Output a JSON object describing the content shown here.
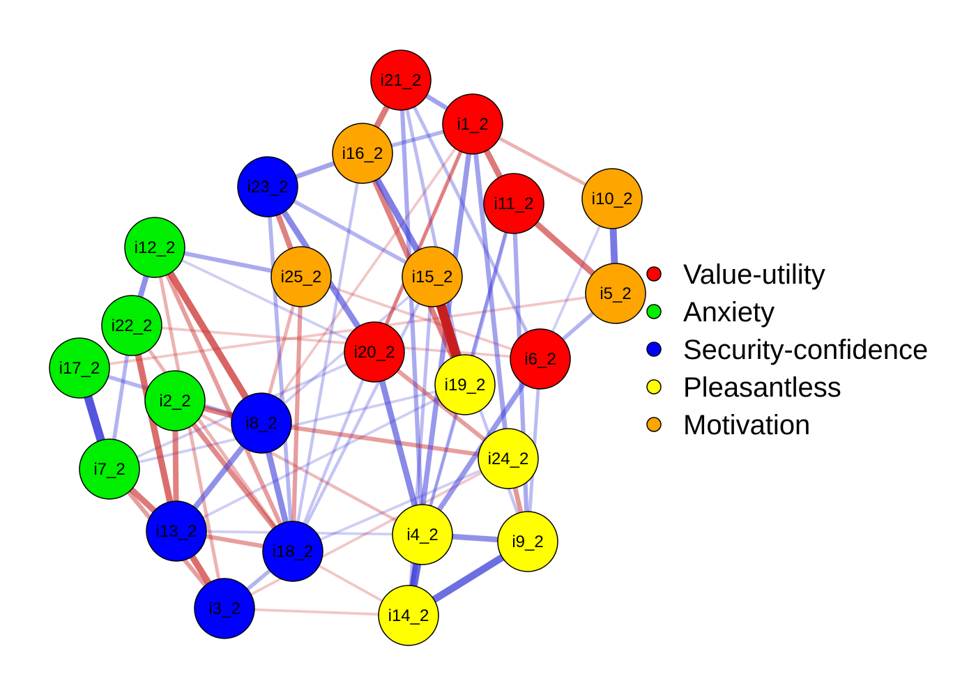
{
  "groups": [
    {
      "id": "value-utility",
      "label": "Value-utility",
      "color": "#ff0000"
    },
    {
      "id": "anxiety",
      "label": "Anxiety",
      "color": "#00ee00"
    },
    {
      "id": "security-confidence",
      "label": "Security-confidence",
      "color": "#0000ff"
    },
    {
      "id": "pleasantless",
      "label": "Pleasantless",
      "color": "#ffff00"
    },
    {
      "id": "motivation",
      "label": "Motivation",
      "color": "#ffa500"
    }
  ],
  "edge_colors": {
    "positive": "#3b3bd9",
    "negative": "#c71f1f"
  },
  "nodes": [
    {
      "id": "i21_2",
      "label": "i21_2",
      "group": "value-utility"
    },
    {
      "id": "i1_2",
      "label": "i1_2",
      "group": "value-utility"
    },
    {
      "id": "i16_2",
      "label": "i16_2",
      "group": "motivation"
    },
    {
      "id": "i23_2",
      "label": "i23_2",
      "group": "security-confidence"
    },
    {
      "id": "i11_2",
      "label": "i11_2",
      "group": "value-utility"
    },
    {
      "id": "i10_2",
      "label": "i10_2",
      "group": "motivation"
    },
    {
      "id": "i12_2",
      "label": "i12_2",
      "group": "anxiety"
    },
    {
      "id": "i25_2",
      "label": "i25_2",
      "group": "motivation"
    },
    {
      "id": "i15_2",
      "label": "i15_2",
      "group": "motivation"
    },
    {
      "id": "i5_2",
      "label": "i5_2",
      "group": "motivation"
    },
    {
      "id": "i22_2",
      "label": "i22_2",
      "group": "anxiety"
    },
    {
      "id": "i20_2",
      "label": "i20_2",
      "group": "value-utility"
    },
    {
      "id": "i6_2",
      "label": "i6_2",
      "group": "value-utility"
    },
    {
      "id": "i17_2",
      "label": "i17_2",
      "group": "anxiety"
    },
    {
      "id": "i19_2",
      "label": "i19_2",
      "group": "pleasantless"
    },
    {
      "id": "i2_2",
      "label": "i2_2",
      "group": "anxiety"
    },
    {
      "id": "i8_2",
      "label": "i8_2",
      "group": "security-confidence"
    },
    {
      "id": "i24_2",
      "label": "i24_2",
      "group": "pleasantless"
    },
    {
      "id": "i7_2",
      "label": "i7_2",
      "group": "anxiety"
    },
    {
      "id": "i4_2",
      "label": "i4_2",
      "group": "pleasantless"
    },
    {
      "id": "i13_2",
      "label": "i13_2",
      "group": "security-confidence"
    },
    {
      "id": "i9_2",
      "label": "i9_2",
      "group": "pleasantless"
    },
    {
      "id": "i18_2",
      "label": "i18_2",
      "group": "security-confidence"
    },
    {
      "id": "i3_2",
      "label": "i3_2",
      "group": "security-confidence"
    },
    {
      "id": "i14_2",
      "label": "i14_2",
      "group": "pleasantless"
    }
  ],
  "edges": [
    {
      "source": "i15_2",
      "target": "i19_2",
      "sign": "negative",
      "weight": 1.0
    },
    {
      "source": "i17_2",
      "target": "i7_2",
      "sign": "positive",
      "weight": 0.85
    },
    {
      "source": "i4_2",
      "target": "i14_2",
      "sign": "positive",
      "weight": 0.75
    },
    {
      "source": "i14_2",
      "target": "i9_2",
      "sign": "positive",
      "weight": 0.7
    },
    {
      "source": "i10_2",
      "target": "i5_2",
      "sign": "positive",
      "weight": 0.65
    },
    {
      "source": "i12_2",
      "target": "i8_2",
      "sign": "negative",
      "weight": 0.65
    },
    {
      "source": "i16_2",
      "target": "i15_2",
      "sign": "positive",
      "weight": 0.6
    },
    {
      "source": "i22_2",
      "target": "i13_2",
      "sign": "negative",
      "weight": 0.6
    },
    {
      "source": "i13_2",
      "target": "i3_2",
      "sign": "negative",
      "weight": 0.6
    },
    {
      "source": "i1_2",
      "target": "i11_2",
      "sign": "negative",
      "weight": 0.55
    },
    {
      "source": "i11_2",
      "target": "i5_2",
      "sign": "negative",
      "weight": 0.55
    },
    {
      "source": "i21_2",
      "target": "i16_2",
      "sign": "negative",
      "weight": 0.55
    },
    {
      "source": "i23_2",
      "target": "i20_2",
      "sign": "positive",
      "weight": 0.55
    },
    {
      "source": "i20_2",
      "target": "i4_2",
      "sign": "positive",
      "weight": 0.55
    },
    {
      "source": "i8_2",
      "target": "i18_2",
      "sign": "positive",
      "weight": 0.55
    },
    {
      "source": "i7_2",
      "target": "i13_2",
      "sign": "negative",
      "weight": 0.55
    },
    {
      "source": "i2_2",
      "target": "i8_2",
      "sign": "negative",
      "weight": 0.5
    },
    {
      "source": "i16_2",
      "target": "i19_2",
      "sign": "negative",
      "weight": 0.5
    },
    {
      "source": "i23_2",
      "target": "i25_2",
      "sign": "negative",
      "weight": 0.5
    },
    {
      "source": "i12_2",
      "target": "i22_2",
      "sign": "positive",
      "weight": 0.5
    },
    {
      "source": "i4_2",
      "target": "i9_2",
      "sign": "positive",
      "weight": 0.5
    },
    {
      "source": "i2_2",
      "target": "i13_2",
      "sign": "negative",
      "weight": 0.5
    },
    {
      "source": "i8_2",
      "target": "i13_2",
      "sign": "positive",
      "weight": 0.5
    },
    {
      "source": "i6_2",
      "target": "i4_2",
      "sign": "positive",
      "weight": 0.45
    },
    {
      "source": "i2_2",
      "target": "i18_2",
      "sign": "negative",
      "weight": 0.45
    },
    {
      "source": "i1_2",
      "target": "i14_2",
      "sign": "positive",
      "weight": 0.45
    },
    {
      "source": "i1_2",
      "target": "i24_2",
      "sign": "positive",
      "weight": 0.4
    },
    {
      "source": "i21_2",
      "target": "i1_2",
      "sign": "positive",
      "weight": 0.4
    },
    {
      "source": "i23_2",
      "target": "i16_2",
      "sign": "positive",
      "weight": 0.4
    },
    {
      "source": "i24_2",
      "target": "i9_2",
      "sign": "negative",
      "weight": 0.4
    },
    {
      "source": "i20_2",
      "target": "i24_2",
      "sign": "negative",
      "weight": 0.35
    },
    {
      "source": "i12_2",
      "target": "i25_2",
      "sign": "positive",
      "weight": 0.35
    },
    {
      "source": "i25_2",
      "target": "i18_2",
      "sign": "negative",
      "weight": 0.35
    },
    {
      "source": "i21_2",
      "target": "i4_2",
      "sign": "positive",
      "weight": 0.35
    },
    {
      "source": "i11_2",
      "target": "i9_2",
      "sign": "positive",
      "weight": 0.35
    },
    {
      "source": "i8_2",
      "target": "i24_2",
      "sign": "negative",
      "weight": 0.35
    },
    {
      "source": "i12_2",
      "target": "i18_2",
      "sign": "negative",
      "weight": 0.35
    },
    {
      "source": "i7_2",
      "target": "i3_2",
      "sign": "negative",
      "weight": 0.35
    },
    {
      "source": "i13_2",
      "target": "i18_2",
      "sign": "negative",
      "weight": 0.35
    },
    {
      "source": "i17_2",
      "target": "i8_2",
      "sign": "positive",
      "weight": 0.3
    },
    {
      "source": "i22_2",
      "target": "i7_2",
      "sign": "positive",
      "weight": 0.3
    },
    {
      "source": "i3_2",
      "target": "i18_2",
      "sign": "positive",
      "weight": 0.3
    },
    {
      "source": "i5_2",
      "target": "i6_2",
      "sign": "positive",
      "weight": 0.3
    },
    {
      "source": "i16_2",
      "target": "i1_2",
      "sign": "positive",
      "weight": 0.3
    },
    {
      "source": "i23_2",
      "target": "i15_2",
      "sign": "positive",
      "weight": 0.3
    },
    {
      "source": "i11_2",
      "target": "i19_2",
      "sign": "positive",
      "weight": 0.3
    },
    {
      "source": "i20_2",
      "target": "i1_2",
      "sign": "negative",
      "weight": 0.3
    },
    {
      "source": "i23_2",
      "target": "i18_2",
      "sign": "positive",
      "weight": 0.3
    },
    {
      "source": "i25_2",
      "target": "i8_2",
      "sign": "negative",
      "weight": 0.25
    },
    {
      "source": "i1_2",
      "target": "i10_2",
      "sign": "negative",
      "weight": 0.25
    },
    {
      "source": "i15_2",
      "target": "i14_2",
      "sign": "positive",
      "weight": 0.25
    },
    {
      "source": "i6_2",
      "target": "i9_2",
      "sign": "positive",
      "weight": 0.25
    },
    {
      "source": "i12_2",
      "target": "i3_2",
      "sign": "negative",
      "weight": 0.25
    },
    {
      "source": "i22_2",
      "target": "i18_2",
      "sign": "negative",
      "weight": 0.25
    },
    {
      "source": "i21_2",
      "target": "i6_2",
      "sign": "positive",
      "weight": 0.25
    },
    {
      "source": "i21_2",
      "target": "i19_2",
      "sign": "positive",
      "weight": 0.25
    },
    {
      "source": "i15_2",
      "target": "i18_2",
      "sign": "positive",
      "weight": 0.2
    },
    {
      "source": "i16_2",
      "target": "i18_2",
      "sign": "positive",
      "weight": 0.2
    },
    {
      "source": "i20_2",
      "target": "i18_2",
      "sign": "positive",
      "weight": 0.2
    },
    {
      "source": "i2_2",
      "target": "i4_2",
      "sign": "negative",
      "weight": 0.2
    },
    {
      "source": "i1_2",
      "target": "i20_2",
      "sign": "negative",
      "weight": 0.2
    },
    {
      "source": "i15_2",
      "target": "i9_2",
      "sign": "positive",
      "weight": 0.2
    },
    {
      "source": "i19_2",
      "target": "i4_2",
      "sign": "positive",
      "weight": 0.2
    },
    {
      "source": "i11_2",
      "target": "i4_2",
      "sign": "positive",
      "weight": 0.2
    },
    {
      "source": "i10_2",
      "target": "i6_2",
      "sign": "positive",
      "weight": 0.15
    },
    {
      "source": "i22_2",
      "target": "i6_2",
      "sign": "negative",
      "weight": 0.15
    },
    {
      "source": "i17_2",
      "target": "i5_2",
      "sign": "negative",
      "weight": 0.15
    },
    {
      "source": "i12_2",
      "target": "i20_2",
      "sign": "positive",
      "weight": 0.15
    },
    {
      "source": "i3_2",
      "target": "i24_2",
      "sign": "negative",
      "weight": 0.15
    },
    {
      "source": "i13_2",
      "target": "i4_2",
      "sign": "positive",
      "weight": 0.15
    },
    {
      "source": "i7_2",
      "target": "i19_2",
      "sign": "positive",
      "weight": 0.15
    },
    {
      "source": "i18_2",
      "target": "i14_2",
      "sign": "negative",
      "weight": 0.15
    },
    {
      "source": "i3_2",
      "target": "i14_2",
      "sign": "negative",
      "weight": 0.15
    },
    {
      "source": "i25_2",
      "target": "i6_2",
      "sign": "negative",
      "weight": 0.15
    },
    {
      "source": "i8_2",
      "target": "i15_2",
      "sign": "positive",
      "weight": 0.15
    },
    {
      "source": "i8_2",
      "target": "i1_2",
      "sign": "negative",
      "weight": 0.15
    },
    {
      "source": "i13_2",
      "target": "i19_2",
      "sign": "positive",
      "weight": 0.15
    },
    {
      "source": "i7_2",
      "target": "i20_2",
      "sign": "positive",
      "weight": 0.15
    },
    {
      "source": "i18_2",
      "target": "i24_2",
      "sign": "positive",
      "weight": 0.15
    }
  ]
}
